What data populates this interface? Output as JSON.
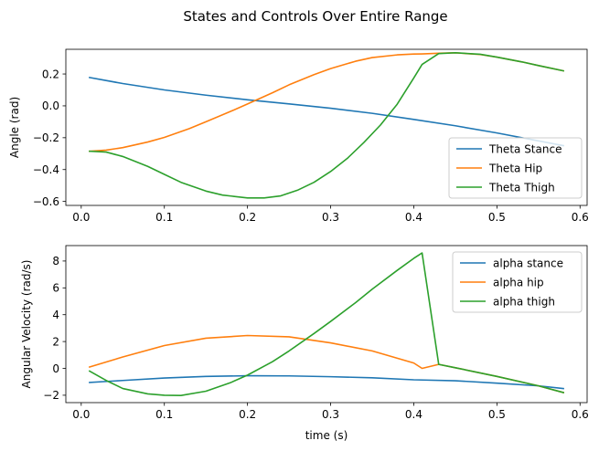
{
  "figure": {
    "title": "States and Controls Over Entire Range"
  },
  "colors": {
    "blue": "#1f77b4",
    "orange": "#ff7f0e",
    "green": "#2ca02c"
  },
  "chart_data": [
    {
      "type": "line",
      "title": "",
      "xlabel": "",
      "ylabel": "Angle (rad)",
      "xlim": [
        -0.0185,
        0.6085
      ],
      "ylim": [
        -0.625,
        0.355
      ],
      "xticks": [
        0.0,
        0.1,
        0.2,
        0.3,
        0.4,
        0.5,
        0.6
      ],
      "xtick_labels": [
        "0.0",
        "0.1",
        "0.2",
        "0.3",
        "0.4",
        "0.5",
        "0.6"
      ],
      "yticks": [
        0.2,
        0.0,
        -0.2,
        -0.4,
        -0.6
      ],
      "ytick_labels": [
        "0.2",
        "0.0",
        "−0.2",
        "−0.4",
        "−0.6"
      ],
      "grid": false,
      "legend_position": "lower-right",
      "series": [
        {
          "name": "Theta Stance",
          "color": "#1f77b4",
          "x": [
            0.01,
            0.05,
            0.1,
            0.15,
            0.2,
            0.25,
            0.3,
            0.35,
            0.4,
            0.45,
            0.5,
            0.55,
            0.58
          ],
          "y": [
            0.178,
            0.14,
            0.1,
            0.067,
            0.038,
            0.012,
            -0.015,
            -0.047,
            -0.085,
            -0.125,
            -0.17,
            -0.22,
            -0.25
          ]
        },
        {
          "name": "Theta Hip",
          "color": "#ff7f0e",
          "x": [
            0.01,
            0.03,
            0.05,
            0.08,
            0.1,
            0.13,
            0.15,
            0.18,
            0.2,
            0.23,
            0.25,
            0.28,
            0.3,
            0.33,
            0.35,
            0.38,
            0.4,
            0.41,
            0.43,
            0.45,
            0.48,
            0.5,
            0.53,
            0.55,
            0.58
          ],
          "y": [
            -0.285,
            -0.278,
            -0.262,
            -0.227,
            -0.198,
            -0.143,
            -0.1,
            -0.034,
            0.012,
            0.082,
            0.132,
            0.196,
            0.234,
            0.28,
            0.303,
            0.32,
            0.325,
            0.326,
            0.33,
            0.333,
            0.322,
            0.306,
            0.276,
            0.253,
            0.22
          ]
        },
        {
          "name": "Theta Thigh",
          "color": "#2ca02c",
          "x": [
            0.01,
            0.03,
            0.05,
            0.08,
            0.1,
            0.12,
            0.15,
            0.17,
            0.2,
            0.22,
            0.24,
            0.26,
            0.28,
            0.3,
            0.32,
            0.34,
            0.36,
            0.38,
            0.4,
            0.41,
            0.43,
            0.45,
            0.48,
            0.5,
            0.53,
            0.55,
            0.58
          ],
          "y": [
            -0.285,
            -0.29,
            -0.318,
            -0.38,
            -0.43,
            -0.48,
            -0.535,
            -0.56,
            -0.578,
            -0.578,
            -0.565,
            -0.53,
            -0.48,
            -0.412,
            -0.33,
            -0.23,
            -0.12,
            0.01,
            0.175,
            0.26,
            0.328,
            0.333,
            0.324,
            0.306,
            0.276,
            0.253,
            0.22
          ]
        }
      ]
    },
    {
      "type": "line",
      "title": "",
      "xlabel": "time (s)",
      "ylabel": "Angular Velocity (rad/s)",
      "xlim": [
        -0.0185,
        0.6085
      ],
      "ylim": [
        -2.55,
        9.15
      ],
      "xticks": [
        0.0,
        0.1,
        0.2,
        0.3,
        0.4,
        0.5,
        0.6
      ],
      "xtick_labels": [
        "0.0",
        "0.1",
        "0.2",
        "0.3",
        "0.4",
        "0.5",
        "0.6"
      ],
      "yticks": [
        8,
        6,
        4,
        2,
        0,
        -2
      ],
      "ytick_labels": [
        "8",
        "6",
        "4",
        "2",
        "0",
        "−2"
      ],
      "grid": false,
      "legend_position": "upper-right",
      "series": [
        {
          "name": "alpha stance",
          "color": "#1f77b4",
          "x": [
            0.01,
            0.05,
            0.1,
            0.15,
            0.2,
            0.25,
            0.3,
            0.35,
            0.4,
            0.45,
            0.5,
            0.55,
            0.58
          ],
          "y": [
            -1.05,
            -0.9,
            -0.72,
            -0.6,
            -0.55,
            -0.56,
            -0.62,
            -0.7,
            -0.85,
            -0.92,
            -1.1,
            -1.3,
            -1.5
          ]
        },
        {
          "name": "alpha hip",
          "color": "#ff7f0e",
          "x": [
            0.01,
            0.05,
            0.1,
            0.15,
            0.2,
            0.25,
            0.3,
            0.35,
            0.4,
            0.41,
            0.43,
            0.45,
            0.5,
            0.55,
            0.58
          ],
          "y": [
            0.1,
            0.85,
            1.7,
            2.25,
            2.45,
            2.35,
            1.9,
            1.3,
            0.4,
            0.0,
            0.3,
            0.05,
            -0.6,
            -1.3,
            -1.8
          ]
        },
        {
          "name": "alpha thigh",
          "color": "#2ca02c",
          "x": [
            0.01,
            0.03,
            0.05,
            0.08,
            0.1,
            0.12,
            0.15,
            0.18,
            0.2,
            0.23,
            0.25,
            0.28,
            0.3,
            0.33,
            0.35,
            0.38,
            0.4,
            0.41,
            0.43,
            0.45,
            0.5,
            0.55,
            0.58
          ],
          "y": [
            -0.2,
            -0.9,
            -1.5,
            -1.9,
            -2.0,
            -2.02,
            -1.7,
            -1.05,
            -0.5,
            0.5,
            1.3,
            2.6,
            3.5,
            4.9,
            5.9,
            7.3,
            8.2,
            8.6,
            0.3,
            0.05,
            -0.6,
            -1.3,
            -1.8
          ]
        }
      ]
    }
  ]
}
